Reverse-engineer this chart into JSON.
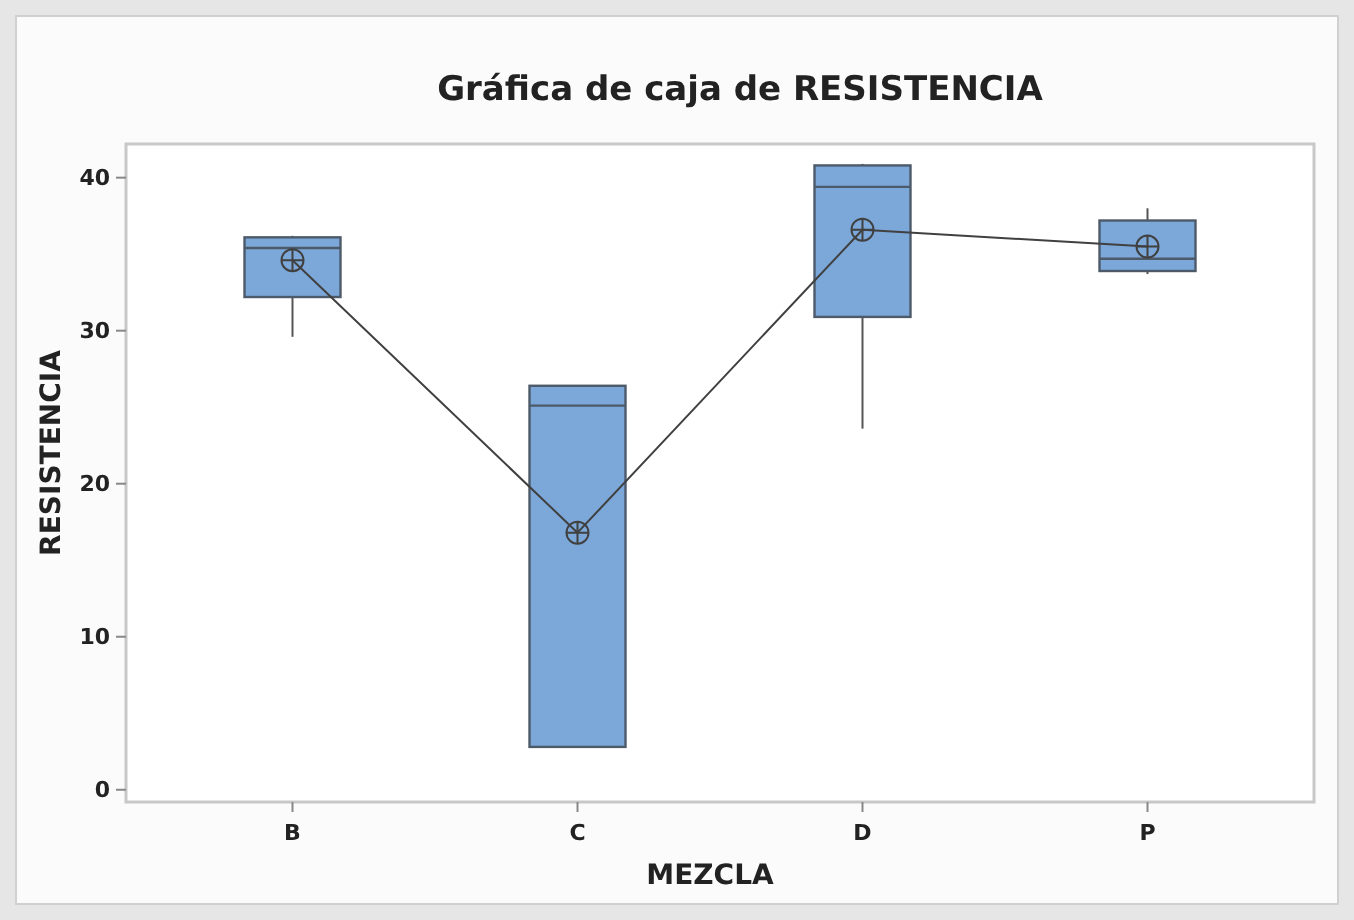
{
  "chart_data": {
    "type": "box",
    "title": "Gráfica de caja de RESISTENCIA",
    "xlabel": "MEZCLA",
    "ylabel": "RESISTENCIA",
    "categories": [
      "B",
      "C",
      "D",
      "P"
    ],
    "ylim": [
      -0.8,
      42.2
    ],
    "yticks": [
      0,
      10,
      20,
      30,
      40
    ],
    "color": "#7ba7d9",
    "boxes": [
      {
        "low": 29.6,
        "q1": 32.2,
        "median": 35.4,
        "q3": 36.1,
        "high": 36.2
      },
      {
        "low": 2.8,
        "q1": 2.8,
        "median": 25.1,
        "q3": 26.4,
        "high": 26.4
      },
      {
        "low": 23.6,
        "q1": 30.9,
        "median": 39.4,
        "q3": 40.8,
        "high": 40.9
      },
      {
        "low": 33.7,
        "q1": 33.9,
        "median": 34.7,
        "q3": 37.2,
        "high": 38.0
      }
    ],
    "series": [
      {
        "type": "line",
        "color": "#404040",
        "x": [
          "B",
          "C",
          "D",
          "P"
        ],
        "values": [
          34.6,
          16.8,
          36.6,
          35.5
        ],
        "marker": "circle"
      }
    ]
  }
}
